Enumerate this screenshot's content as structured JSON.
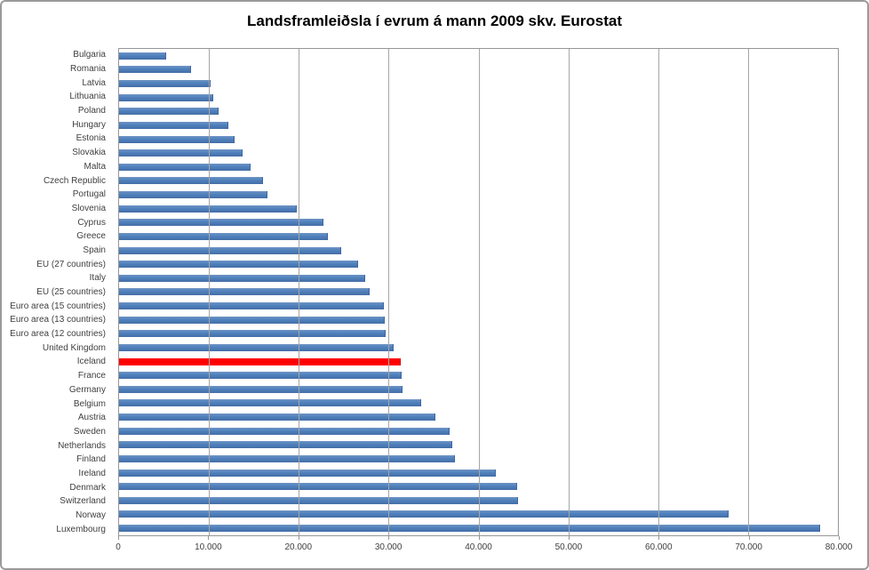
{
  "title": "Landsframleiðsla í evrum á mann 2009 skv. Eurostat",
  "colors": {
    "bar": "#4F81BD",
    "highlight": "#FF0000",
    "gridline": "#A6A6A6",
    "axis_text": "#3F3F3F",
    "chart_border": "#9A9A9A"
  },
  "chart_data": {
    "type": "bar",
    "orientation": "horizontal",
    "title": "Landsframleiðsla í evrum á mann 2009 skv. Eurostat",
    "xlabel": "",
    "ylabel": "",
    "xlim": [
      0,
      80000
    ],
    "grid": "vertical",
    "legend": "none",
    "x_tick_values": [
      0,
      10000,
      20000,
      30000,
      40000,
      50000,
      60000,
      70000,
      80000
    ],
    "x_tick_labels": [
      "0",
      "10.000",
      "20.000",
      "30.000",
      "40.000",
      "50.000",
      "60.000",
      "70.000",
      "80.000"
    ],
    "highlight_category": "Iceland",
    "categories": [
      "Bulgaria",
      "Romania",
      "Latvia",
      "Lithuania",
      "Poland",
      "Hungary",
      "Estonia",
      "Slovakia",
      "Malta",
      "Czech Republic",
      "Portugal",
      "Slovenia",
      "Cyprus",
      "Greece",
      "Spain",
      "EU (27 countries)",
      "Italy",
      "EU (25 countries)",
      "Euro area (15 countries)",
      "Euro area (13 countries)",
      "Euro area (12 countries)",
      "United Kingdom",
      "Iceland",
      "France",
      "Germany",
      "Belgium",
      "Austria",
      "Sweden",
      "Netherlands",
      "Finland",
      "Ireland",
      "Denmark",
      "Switzerland",
      "Norway",
      "Luxembourg"
    ],
    "values": [
      5100,
      7900,
      10100,
      10400,
      11000,
      12100,
      12800,
      13600,
      14500,
      15900,
      16400,
      19700,
      22600,
      23100,
      24600,
      26500,
      27300,
      27800,
      29400,
      29500,
      29600,
      30500,
      31200,
      31300,
      31400,
      33500,
      35100,
      36700,
      37000,
      37300,
      41800,
      44200,
      44300,
      67700,
      77900
    ]
  }
}
